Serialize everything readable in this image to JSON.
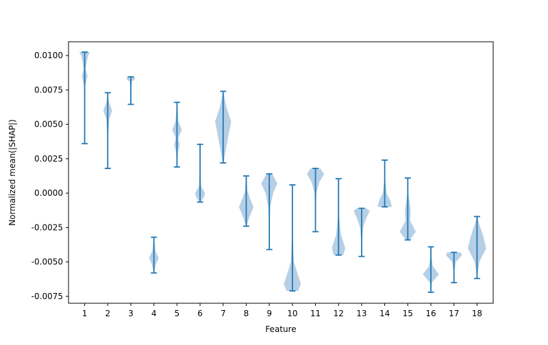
{
  "chart_data": {
    "type": "violin",
    "title": "",
    "xlabel": "Feature",
    "ylabel": "Normalized mean(|SHAP|)",
    "ylim": [
      -0.008,
      0.011
    ],
    "yticks": [
      "0.0100",
      "0.0075",
      "0.0050",
      "0.0025",
      "0.0000",
      "-0.0025",
      "-0.0050",
      "-0.0075"
    ],
    "ytick_values": [
      0.01,
      0.0075,
      0.005,
      0.0025,
      0.0,
      -0.0025,
      -0.005,
      -0.0075
    ],
    "categories": [
      "1",
      "2",
      "3",
      "4",
      "5",
      "6",
      "7",
      "8",
      "9",
      "10",
      "11",
      "12",
      "13",
      "14",
      "15",
      "16",
      "17",
      "18"
    ],
    "grid": false,
    "colors": {
      "violin_fill": "#9dbfdc",
      "line": "#1f77b4",
      "axes": "#000000"
    },
    "series": [
      {
        "feature": "1",
        "min": 0.0036,
        "max": 0.01025,
        "density": [
          [
            0.0036,
            0.002
          ],
          [
            0.006,
            0.005
          ],
          [
            0.0078,
            0.03
          ],
          [
            0.0085,
            0.15
          ],
          [
            0.009,
            0.05
          ],
          [
            0.0096,
            0.12
          ],
          [
            0.01,
            0.18
          ],
          [
            0.01025,
            0.28
          ]
        ]
      },
      {
        "feature": "2",
        "min": 0.0018,
        "max": 0.0073,
        "density": [
          [
            0.0018,
            0.002
          ],
          [
            0.004,
            0.01
          ],
          [
            0.0054,
            0.08
          ],
          [
            0.006,
            0.23
          ],
          [
            0.0066,
            0.07
          ],
          [
            0.0073,
            0.002
          ]
        ]
      },
      {
        "feature": "3",
        "min": 0.00645,
        "max": 0.00845,
        "density": [
          [
            0.00645,
            0.002
          ],
          [
            0.0074,
            0.01
          ],
          [
            0.0081,
            0.06
          ],
          [
            0.0083,
            0.24
          ],
          [
            0.00845,
            0.18
          ]
        ]
      },
      {
        "feature": "4",
        "min": -0.0058,
        "max": -0.0032,
        "density": [
          [
            -0.0058,
            0.002
          ],
          [
            -0.0052,
            0.1
          ],
          [
            -0.0047,
            0.25
          ],
          [
            -0.0042,
            0.08
          ],
          [
            -0.0032,
            0.002
          ]
        ]
      },
      {
        "feature": "5",
        "min": 0.0019,
        "max": 0.0066,
        "density": [
          [
            0.0019,
            0.002
          ],
          [
            0.003,
            0.05
          ],
          [
            0.0035,
            0.15
          ],
          [
            0.004,
            0.06
          ],
          [
            0.0046,
            0.25
          ],
          [
            0.0052,
            0.08
          ],
          [
            0.0066,
            0.002
          ]
        ]
      },
      {
        "feature": "6",
        "min": -0.00065,
        "max": 0.00355,
        "density": [
          [
            -0.00065,
            0.02
          ],
          [
            -0.0003,
            0.2
          ],
          [
            0.0,
            0.26
          ],
          [
            0.0005,
            0.06
          ],
          [
            0.0015,
            0.01
          ],
          [
            0.00355,
            0.002
          ]
        ]
      },
      {
        "feature": "7",
        "min": 0.0022,
        "max": 0.0074,
        "density": [
          [
            0.0022,
            0.02
          ],
          [
            0.003,
            0.12
          ],
          [
            0.004,
            0.25
          ],
          [
            0.0052,
            0.42
          ],
          [
            0.0062,
            0.18
          ],
          [
            0.0074,
            0.002
          ]
        ]
      },
      {
        "feature": "8",
        "min": -0.0024,
        "max": 0.00125,
        "density": [
          [
            -0.0024,
            0.02
          ],
          [
            -0.0018,
            0.15
          ],
          [
            -0.001,
            0.38
          ],
          [
            -0.0004,
            0.2
          ],
          [
            0.0002,
            0.06
          ],
          [
            0.00125,
            0.01
          ]
        ]
      },
      {
        "feature": "9",
        "min": -0.0041,
        "max": 0.0014,
        "density": [
          [
            -0.0041,
            0.002
          ],
          [
            -0.0025,
            0.01
          ],
          [
            -0.001,
            0.05
          ],
          [
            0.0,
            0.2
          ],
          [
            0.0007,
            0.42
          ],
          [
            0.0014,
            0.15
          ]
        ]
      },
      {
        "feature": "10",
        "min": -0.0071,
        "max": 0.0006,
        "density": [
          [
            -0.0071,
            0.3
          ],
          [
            -0.0066,
            0.45
          ],
          [
            -0.006,
            0.3
          ],
          [
            -0.005,
            0.08
          ],
          [
            -0.003,
            0.02
          ],
          [
            0.0006,
            0.002
          ]
        ]
      },
      {
        "feature": "11",
        "min": -0.0028,
        "max": 0.0018,
        "density": [
          [
            -0.0028,
            0.002
          ],
          [
            -0.0015,
            0.01
          ],
          [
            0.0,
            0.05
          ],
          [
            0.0008,
            0.2
          ],
          [
            0.0014,
            0.45
          ],
          [
            0.0018,
            0.25
          ]
        ]
      },
      {
        "feature": "12",
        "min": -0.0045,
        "max": 0.00105,
        "density": [
          [
            -0.0045,
            0.25
          ],
          [
            -0.004,
            0.35
          ],
          [
            -0.003,
            0.12
          ],
          [
            -0.0015,
            0.02
          ],
          [
            0.00105,
            0.002
          ]
        ]
      },
      {
        "feature": "13",
        "min": -0.0046,
        "max": -0.0011,
        "density": [
          [
            -0.0046,
            0.002
          ],
          [
            -0.0035,
            0.02
          ],
          [
            -0.0025,
            0.08
          ],
          [
            -0.0018,
            0.25
          ],
          [
            -0.0013,
            0.42
          ],
          [
            -0.0011,
            0.25
          ]
        ]
      },
      {
        "feature": "14",
        "min": -0.001,
        "max": 0.0024,
        "density": [
          [
            -0.001,
            0.38
          ],
          [
            -0.0005,
            0.28
          ],
          [
            0.0,
            0.1
          ],
          [
            0.001,
            0.02
          ],
          [
            0.0024,
            0.002
          ]
        ]
      },
      {
        "feature": "15",
        "min": -0.0034,
        "max": 0.0011,
        "density": [
          [
            -0.0034,
            0.1
          ],
          [
            -0.0028,
            0.42
          ],
          [
            -0.002,
            0.12
          ],
          [
            -0.0012,
            0.15
          ],
          [
            0.0,
            0.02
          ],
          [
            0.0011,
            0.002
          ]
        ]
      },
      {
        "feature": "16",
        "min": -0.0072,
        "max": -0.0039,
        "density": [
          [
            -0.0072,
            0.002
          ],
          [
            -0.0065,
            0.05
          ],
          [
            -0.0059,
            0.42
          ],
          [
            -0.0053,
            0.1
          ],
          [
            -0.0045,
            0.02
          ],
          [
            -0.0039,
            0.002
          ]
        ]
      },
      {
        "feature": "17",
        "min": -0.0065,
        "max": -0.0043,
        "density": [
          [
            -0.0065,
            0.002
          ],
          [
            -0.0058,
            0.01
          ],
          [
            -0.005,
            0.1
          ],
          [
            -0.0045,
            0.42
          ],
          [
            -0.0043,
            0.35
          ]
        ]
      },
      {
        "feature": "18",
        "min": -0.0062,
        "max": -0.0017,
        "density": [
          [
            -0.0062,
            0.002
          ],
          [
            -0.005,
            0.12
          ],
          [
            -0.004,
            0.48
          ],
          [
            -0.003,
            0.3
          ],
          [
            -0.0022,
            0.1
          ],
          [
            -0.0017,
            0.02
          ]
        ]
      }
    ]
  }
}
